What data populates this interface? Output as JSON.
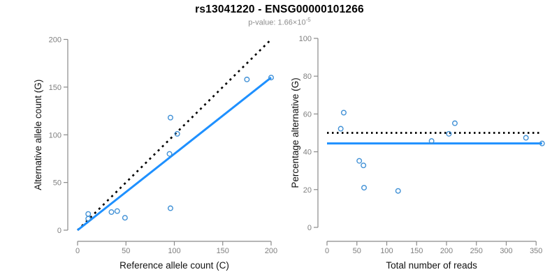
{
  "header": {
    "title": "rs13041220 - ENSG00000101266",
    "subtitle": {
      "text": "p-value: 1.66×10",
      "exponent": "-5"
    }
  },
  "colors": {
    "point_blue": "#4191d6",
    "line_blue": "#1e90ff",
    "reference_black": "#000000",
    "axis_gray": "#8a8a8a",
    "tick_text_gray": "#7f7f7f",
    "axis_title_black": "#111111",
    "subtitle_gray": "#8c8c8c"
  },
  "chart_data": [
    {
      "type": "scatter",
      "title": "",
      "xlabel": "Reference allele count (C)",
      "ylabel": "Alternative allele count (G)",
      "xlim": [
        0,
        200
      ],
      "ylim": [
        0,
        200
      ],
      "xticks": [
        0,
        50,
        100,
        150,
        200
      ],
      "yticks": [
        0,
        50,
        100,
        150,
        200
      ],
      "grid": false,
      "legend": null,
      "points": [
        [
          11,
          12
        ],
        [
          11,
          17
        ],
        [
          35,
          19
        ],
        [
          41,
          20
        ],
        [
          49,
          13
        ],
        [
          95,
          80
        ],
        [
          96,
          23
        ],
        [
          96,
          118
        ],
        [
          103,
          101
        ],
        [
          175,
          158
        ],
        [
          200,
          160
        ]
      ],
      "lines": [
        {
          "name": "identity-line",
          "style": "dashed",
          "color": "#000000",
          "from": [
            0,
            0
          ],
          "to": [
            200,
            200
          ]
        },
        {
          "name": "fit-line",
          "style": "solid",
          "color": "#1e90ff",
          "from": [
            0,
            0
          ],
          "to": [
            200,
            160
          ]
        }
      ]
    },
    {
      "type": "scatter",
      "title": "",
      "xlabel": "Total number of reads",
      "ylabel": "Percentage alternative (G)",
      "xlim": [
        0,
        360
      ],
      "ylim": [
        0,
        100
      ],
      "xticks": [
        0,
        50,
        100,
        150,
        200,
        250,
        300,
        350
      ],
      "yticks": [
        0,
        20,
        40,
        60,
        80,
        100
      ],
      "grid": false,
      "legend": null,
      "points": [
        [
          23,
          52.2
        ],
        [
          28,
          60.7
        ],
        [
          54,
          35.2
        ],
        [
          61,
          32.8
        ],
        [
          62,
          21.0
        ],
        [
          119,
          19.3
        ],
        [
          175,
          45.7
        ],
        [
          204,
          49.5
        ],
        [
          214,
          55.1
        ],
        [
          333,
          47.4
        ],
        [
          360,
          44.4
        ]
      ],
      "lines": [
        {
          "name": "null-line",
          "style": "dotted",
          "color": "#000000",
          "y": 50
        },
        {
          "name": "fit-line",
          "style": "solid",
          "color": "#1e90ff",
          "y": 44.4
        }
      ]
    }
  ]
}
